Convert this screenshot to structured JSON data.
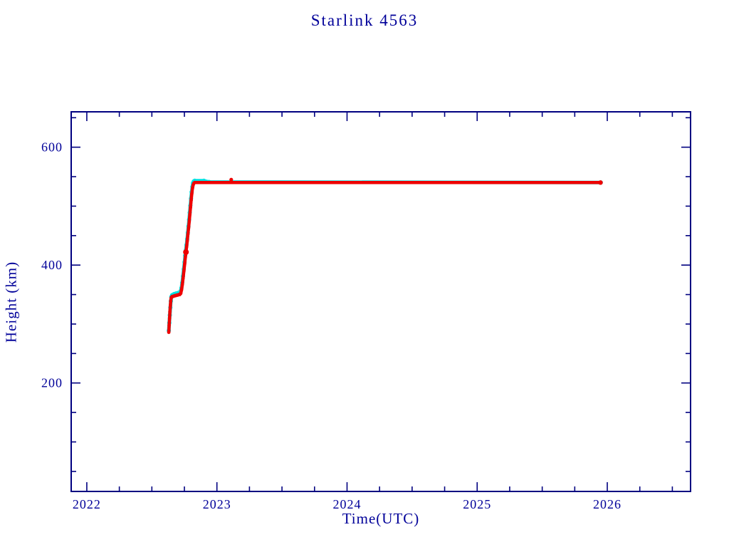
{
  "chart_data": {
    "type": "scatter",
    "title": "Starlink 4563",
    "xlabel": "Time(UTC)",
    "ylabel": "Height (km)",
    "xlim": [
      2021.88,
      2026.64
    ],
    "ylim": [
      16,
      660
    ],
    "x_ticks": [
      2022,
      2023,
      2024,
      2025,
      2026
    ],
    "x_minor_step": 0.25,
    "y_ticks": [
      200,
      400,
      600
    ],
    "y_minor_step": 50,
    "grid": "off",
    "legend": "none",
    "colors": {
      "frame": "#000080",
      "text": "#000099",
      "series_red": "#ee0000",
      "series_cyan": "#00e0e0"
    },
    "series": [
      {
        "name": "cyan",
        "color_key": "series_cyan",
        "line_width": 5,
        "dot_r": 3,
        "points": [
          [
            2022.63,
            289
          ],
          [
            2022.634,
            302
          ],
          [
            2022.638,
            315
          ],
          [
            2022.642,
            328
          ],
          [
            2022.646,
            339
          ],
          [
            2022.65,
            346
          ],
          [
            2022.656,
            349
          ],
          [
            2022.664,
            350
          ],
          [
            2022.672,
            351
          ],
          [
            2022.68,
            351
          ],
          [
            2022.688,
            352
          ],
          [
            2022.696,
            352
          ],
          [
            2022.704,
            353
          ],
          [
            2022.712,
            353
          ],
          [
            2022.72,
            355
          ],
          [
            2022.727,
            361
          ],
          [
            2022.733,
            370
          ],
          [
            2022.739,
            381
          ],
          [
            2022.745,
            393
          ],
          [
            2022.751,
            405
          ],
          [
            2022.756,
            416
          ],
          [
            2022.761,
            425
          ],
          [
            2022.766,
            434
          ],
          [
            2022.771,
            444
          ],
          [
            2022.776,
            455
          ],
          [
            2022.781,
            466
          ],
          [
            2022.786,
            477
          ],
          [
            2022.791,
            489
          ],
          [
            2022.796,
            501
          ],
          [
            2022.801,
            513
          ],
          [
            2022.806,
            524
          ],
          [
            2022.811,
            533
          ],
          [
            2022.816,
            539
          ],
          [
            2022.822,
            542
          ],
          [
            2022.83,
            543
          ],
          [
            2022.9,
            543
          ],
          [
            2022.94,
            541
          ],
          [
            2025.95,
            540
          ]
        ],
        "extra_dots": []
      },
      {
        "name": "red",
        "color_key": "series_red",
        "line_width": 4.5,
        "dot_r": 2.4,
        "points": [
          [
            2022.63,
            286
          ],
          [
            2022.633,
            298
          ],
          [
            2022.636,
            310
          ],
          [
            2022.639,
            321
          ],
          [
            2022.642,
            331
          ],
          [
            2022.645,
            339
          ],
          [
            2022.648,
            344
          ],
          [
            2022.652,
            346
          ],
          [
            2022.658,
            347
          ],
          [
            2022.666,
            347
          ],
          [
            2022.674,
            348
          ],
          [
            2022.682,
            348
          ],
          [
            2022.69,
            349
          ],
          [
            2022.698,
            349
          ],
          [
            2022.706,
            350
          ],
          [
            2022.714,
            350
          ],
          [
            2022.722,
            352
          ],
          [
            2022.728,
            358
          ],
          [
            2022.734,
            367
          ],
          [
            2022.74,
            378
          ],
          [
            2022.746,
            390
          ],
          [
            2022.752,
            402
          ],
          [
            2022.757,
            413
          ],
          [
            2022.762,
            422
          ],
          [
            2022.767,
            431
          ],
          [
            2022.772,
            441
          ],
          [
            2022.777,
            452
          ],
          [
            2022.782,
            463
          ],
          [
            2022.787,
            474
          ],
          [
            2022.792,
            486
          ],
          [
            2022.797,
            498
          ],
          [
            2022.802,
            510
          ],
          [
            2022.807,
            521
          ],
          [
            2022.812,
            530
          ],
          [
            2022.817,
            536
          ],
          [
            2022.823,
            539
          ],
          [
            2022.83,
            540
          ],
          [
            2025.95,
            540
          ]
        ],
        "extra_dots": [
          [
            2022.762,
            422,
            4
          ],
          [
            2023.11,
            545,
            2.6
          ],
          [
            2025.948,
            540,
            3.2
          ]
        ]
      }
    ]
  }
}
